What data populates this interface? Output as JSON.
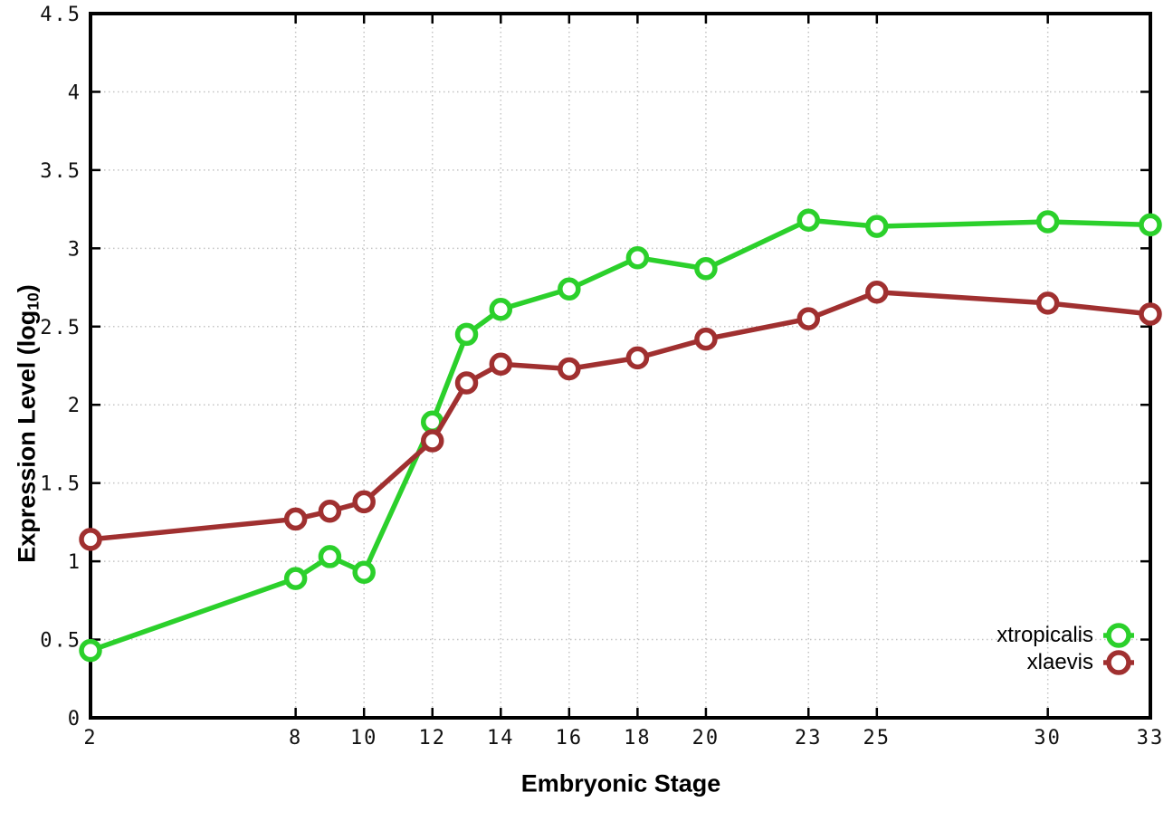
{
  "chart_data": {
    "type": "line",
    "title": "",
    "xlabel": "Embryonic Stage",
    "ylabel": "Expression Level (log10)",
    "ylabel_parts": {
      "main": "Expression Level (log",
      "sub": "10",
      "end": ")"
    },
    "xlim": [
      2,
      33
    ],
    "ylim": [
      0,
      4.5
    ],
    "grid": true,
    "legend_position": "inside-bottom-right",
    "marker": "open-circle",
    "x": [
      2,
      8,
      9,
      10,
      12,
      13,
      14,
      16,
      18,
      20,
      23,
      25,
      30,
      33
    ],
    "series": [
      {
        "name": "xtropicalis",
        "color": "#2bd02b",
        "values": [
          0.43,
          0.89,
          1.03,
          0.93,
          1.89,
          2.45,
          2.61,
          2.74,
          2.94,
          2.87,
          3.18,
          3.14,
          3.17,
          3.15
        ]
      },
      {
        "name": "xlaevis",
        "color": "#a03030",
        "values": [
          1.14,
          1.27,
          1.32,
          1.38,
          1.77,
          2.14,
          2.26,
          2.23,
          2.3,
          2.42,
          2.55,
          2.72,
          2.65,
          2.58
        ]
      }
    ],
    "x_ticks": [
      2,
      8,
      10,
      12,
      14,
      16,
      18,
      20,
      23,
      25,
      30,
      33
    ],
    "x_tick_labels": [
      "2",
      "8",
      "10",
      "12",
      "14",
      "16",
      "18",
      "20",
      "23",
      "25",
      "30",
      "33"
    ],
    "y_ticks": [
      0,
      0.5,
      1,
      1.5,
      2,
      2.5,
      3,
      3.5,
      4,
      4.5
    ],
    "y_tick_labels": [
      "0",
      "0.5",
      "1",
      "1.5",
      "2",
      "2.5",
      "3",
      "3.5",
      "4",
      "4.5"
    ],
    "colors": {
      "grid": "#c4c4c4",
      "axis": "#000000",
      "background": "#ffffff",
      "marker_fill": "#ffffff"
    }
  }
}
